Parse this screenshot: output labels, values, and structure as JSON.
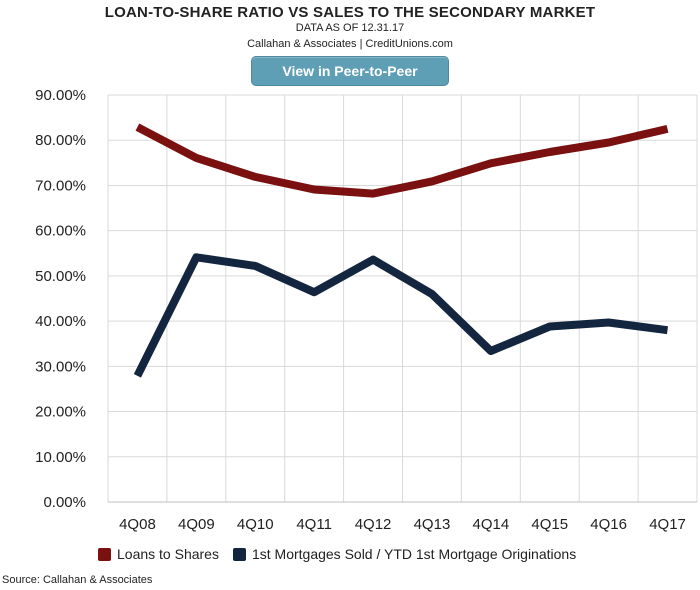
{
  "header": {
    "title": "LOAN-TO-SHARE RATIO VS SALES TO THE SECONDARY MARKET",
    "subtitle": "DATA AS OF 12.31.17",
    "credit": "Callahan & Associates | CreditUnions.com",
    "button_label": "View in Peer-to-Peer"
  },
  "source": "Source: Callahan & Associates",
  "colors": {
    "loans_to_shares": "#7b1010",
    "mortgages_sold": "#14263f",
    "button": "#5f9fb5"
  },
  "chart_data": {
    "type": "line",
    "categories": [
      "4Q08",
      "4Q09",
      "4Q10",
      "4Q11",
      "4Q12",
      "4Q13",
      "4Q14",
      "4Q15",
      "4Q16",
      "4Q17"
    ],
    "y_ticks": [
      "0.00%",
      "10.00%",
      "20.00%",
      "30.00%",
      "40.00%",
      "50.00%",
      "60.00%",
      "70.00%",
      "80.00%",
      "90.00%"
    ],
    "ylim": [
      0,
      90
    ],
    "grid": true,
    "legend_position": "bottom",
    "series": [
      {
        "name": "Loans to Shares",
        "color": "#7b1010",
        "values": [
          82.9,
          76.1,
          71.9,
          69.1,
          68.2,
          70.9,
          74.9,
          77.4,
          79.5,
          82.5
        ]
      },
      {
        "name": "1st Mortgages Sold / YTD 1st Mortgage Originations",
        "color": "#14263f",
        "values": [
          27.9,
          54.1,
          52.2,
          46.4,
          53.6,
          46.0,
          33.4,
          38.8,
          39.7,
          38.0
        ]
      }
    ]
  }
}
